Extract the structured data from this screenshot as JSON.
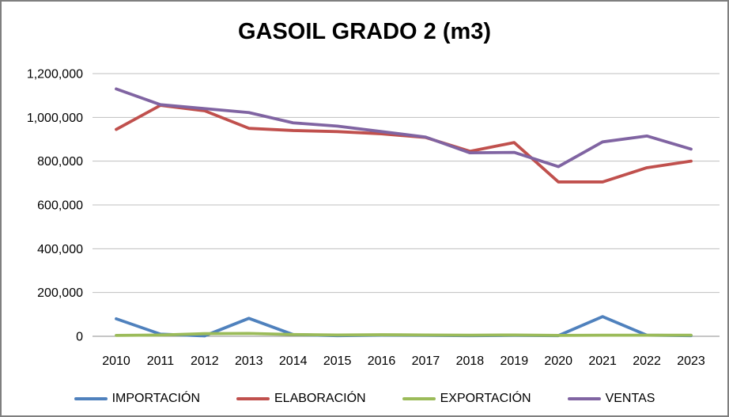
{
  "chart_data": {
    "type": "line",
    "title": "GASOIL GRADO 2 (m3)",
    "xlabel": "",
    "ylabel": "",
    "x": [
      2010,
      2011,
      2012,
      2013,
      2014,
      2015,
      2016,
      2017,
      2018,
      2019,
      2020,
      2021,
      2022,
      2023
    ],
    "ylim": [
      0,
      1200000
    ],
    "ytick_step": 200000,
    "ytick_labels": [
      "0",
      "200,000",
      "400,000",
      "600,000",
      "800,000",
      "1,000,000",
      "1,200,000"
    ],
    "grid": true,
    "legend_position": "bottom",
    "series": [
      {
        "name": "IMPORTACIÓN",
        "color": "#4F81BD",
        "values": [
          80000,
          10000,
          2000,
          82000,
          8000,
          3000,
          5000,
          4000,
          3000,
          4000,
          3000,
          90000,
          5000,
          3000
        ]
      },
      {
        "name": "ELABORACIÓN",
        "color": "#C0504D",
        "values": [
          945000,
          1055000,
          1030000,
          950000,
          940000,
          935000,
          925000,
          908000,
          845000,
          885000,
          705000,
          705000,
          770000,
          800000
        ]
      },
      {
        "name": "EXPORTACIÓN",
        "color": "#9BBB59",
        "values": [
          4000,
          6000,
          12000,
          13000,
          8000,
          6000,
          7000,
          6000,
          5000,
          6000,
          4000,
          5000,
          5000,
          5000
        ]
      },
      {
        "name": "VENTAS",
        "color": "#8064A2",
        "values": [
          1130000,
          1058000,
          1040000,
          1022000,
          975000,
          960000,
          935000,
          910000,
          838000,
          840000,
          775000,
          888000,
          915000,
          855000
        ]
      }
    ],
    "style": {
      "gridline_color": "#BFBFBF",
      "axis_color": "#8C8C8C",
      "line_width": 3.8
    }
  }
}
